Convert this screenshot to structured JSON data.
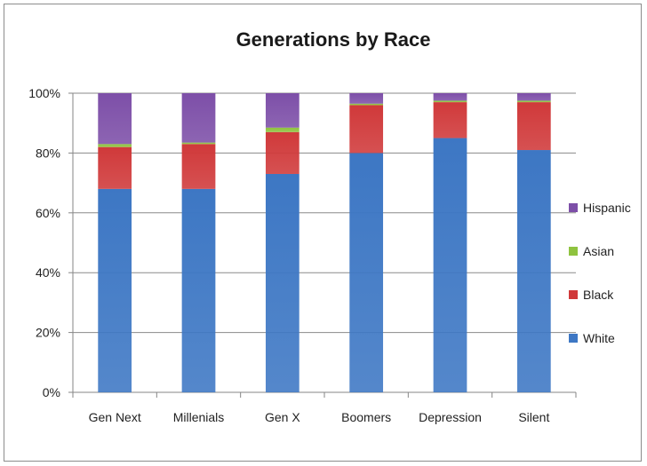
{
  "chart_data": {
    "type": "bar",
    "stacked": true,
    "percent_stacked": true,
    "title": "Generations by Race",
    "xlabel": "",
    "ylabel": "",
    "ylim": [
      0,
      100
    ],
    "y_ticks": [
      "0%",
      "20%",
      "40%",
      "60%",
      "80%",
      "100%"
    ],
    "grid": true,
    "legend_position": "right",
    "categories": [
      "Gen Next",
      "Millenials",
      "Gen X",
      "Boomers",
      "Depression",
      "Silent"
    ],
    "series": [
      {
        "name": "White",
        "color": "#3d77c4",
        "values": [
          68,
          68,
          73,
          80,
          85,
          81
        ]
      },
      {
        "name": "Black",
        "color": "#d0393a",
        "values": [
          14,
          15,
          14,
          16,
          12,
          16
        ]
      },
      {
        "name": "Asian",
        "color": "#8fc33f",
        "values": [
          1,
          0.5,
          1.5,
          0.5,
          0.5,
          0.5
        ]
      },
      {
        "name": "Hispanic",
        "color": "#7d4fa8",
        "values": [
          17,
          16.5,
          11.5,
          3.5,
          2.5,
          2.5
        ]
      }
    ],
    "legend_order": [
      "Hispanic",
      "Asian",
      "Black",
      "White"
    ]
  }
}
